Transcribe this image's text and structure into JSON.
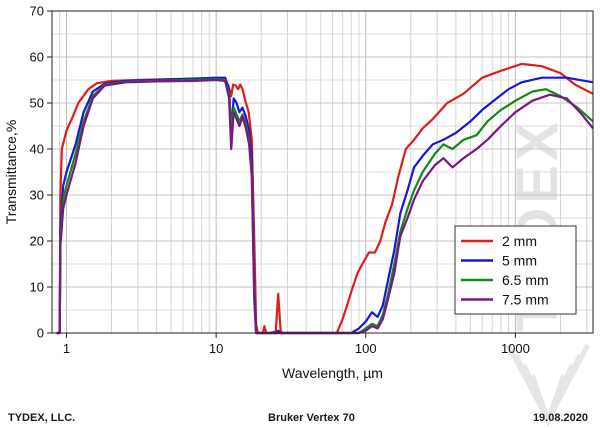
{
  "chart_data": {
    "type": "line",
    "xlabel": "Wavelength, µm",
    "ylabel": "Transmittance,%",
    "x_scale": "log",
    "xlim": [
      0.8,
      3300
    ],
    "ylim": [
      0,
      70
    ],
    "grid": true,
    "legend_position": "right",
    "x_ticks": [
      {
        "value": 1,
        "label": "1"
      },
      {
        "value": 10,
        "label": "10"
      },
      {
        "value": 100,
        "label": "100"
      },
      {
        "value": 1000,
        "label": "1000"
      }
    ],
    "y_ticks": [
      {
        "value": 0,
        "label": "0"
      },
      {
        "value": 10,
        "label": "10"
      },
      {
        "value": 20,
        "label": "20"
      },
      {
        "value": 30,
        "label": "30"
      },
      {
        "value": 40,
        "label": "40"
      },
      {
        "value": 50,
        "label": "50"
      },
      {
        "value": 60,
        "label": "60"
      },
      {
        "value": 70,
        "label": "70"
      }
    ],
    "watermark": "TYDEX",
    "series": [
      {
        "name": "2 mm",
        "color": "#e21b1b",
        "points": [
          [
            0.86,
            0
          ],
          [
            0.9,
            0
          ],
          [
            0.91,
            30
          ],
          [
            0.93,
            40
          ],
          [
            1.0,
            44
          ],
          [
            1.1,
            47
          ],
          [
            1.2,
            50
          ],
          [
            1.4,
            53
          ],
          [
            1.6,
            54.3
          ],
          [
            2,
            54.8
          ],
          [
            3,
            55
          ],
          [
            5,
            55.2
          ],
          [
            8,
            55.3
          ],
          [
            11,
            55.3
          ],
          [
            12,
            54
          ],
          [
            12.6,
            51.5
          ],
          [
            13,
            54
          ],
          [
            13.5,
            53.8
          ],
          [
            14,
            53
          ],
          [
            14.5,
            54
          ],
          [
            15,
            53
          ],
          [
            15.8,
            50
          ],
          [
            16.5,
            48
          ],
          [
            17.3,
            42
          ],
          [
            18,
            20
          ],
          [
            18.5,
            2
          ],
          [
            19,
            0
          ],
          [
            20.5,
            0
          ],
          [
            21,
            1.5
          ],
          [
            21.6,
            0
          ],
          [
            23,
            0
          ],
          [
            25,
            0.3
          ],
          [
            26,
            8.5
          ],
          [
            27,
            0.3
          ],
          [
            28,
            0
          ],
          [
            60,
            0
          ],
          [
            64,
            0
          ],
          [
            70,
            3
          ],
          [
            75,
            6
          ],
          [
            80,
            9
          ],
          [
            88,
            13
          ],
          [
            95,
            15
          ],
          [
            105,
            17.5
          ],
          [
            115,
            17.5
          ],
          [
            125,
            20
          ],
          [
            135,
            24
          ],
          [
            150,
            28
          ],
          [
            165,
            34
          ],
          [
            185,
            40
          ],
          [
            210,
            42
          ],
          [
            240,
            44.5
          ],
          [
            280,
            46.5
          ],
          [
            350,
            50
          ],
          [
            450,
            52
          ],
          [
            600,
            55.5
          ],
          [
            800,
            57
          ],
          [
            1100,
            58.5
          ],
          [
            1500,
            58
          ],
          [
            2000,
            56.5
          ],
          [
            2500,
            54
          ],
          [
            3300,
            52
          ]
        ]
      },
      {
        "name": "5 mm",
        "color": "#1717d8",
        "points": [
          [
            0.86,
            0
          ],
          [
            0.9,
            0
          ],
          [
            0.91,
            22
          ],
          [
            0.95,
            32
          ],
          [
            1.0,
            35
          ],
          [
            1.15,
            41
          ],
          [
            1.3,
            48
          ],
          [
            1.5,
            52.5
          ],
          [
            1.8,
            54.2
          ],
          [
            2.5,
            54.8
          ],
          [
            4,
            55
          ],
          [
            7,
            55.3
          ],
          [
            10,
            55.5
          ],
          [
            11.5,
            55.5
          ],
          [
            12.2,
            53
          ],
          [
            12.6,
            44
          ],
          [
            13.1,
            51
          ],
          [
            13.7,
            50
          ],
          [
            14.3,
            48
          ],
          [
            15,
            49
          ],
          [
            15.8,
            47
          ],
          [
            16.6,
            44
          ],
          [
            17.3,
            38
          ],
          [
            18,
            10
          ],
          [
            18.5,
            0
          ],
          [
            20,
            0
          ],
          [
            25,
            0
          ],
          [
            26,
            0.5
          ],
          [
            27,
            0
          ],
          [
            80,
            0
          ],
          [
            90,
            1
          ],
          [
            100,
            2.5
          ],
          [
            110,
            4.5
          ],
          [
            120,
            3.5
          ],
          [
            130,
            6
          ],
          [
            140,
            11
          ],
          [
            155,
            18
          ],
          [
            170,
            26
          ],
          [
            190,
            31
          ],
          [
            210,
            36
          ],
          [
            240,
            38.5
          ],
          [
            280,
            41
          ],
          [
            330,
            42
          ],
          [
            400,
            43.5
          ],
          [
            500,
            46
          ],
          [
            600,
            48.5
          ],
          [
            750,
            51
          ],
          [
            900,
            53
          ],
          [
            1100,
            54.5
          ],
          [
            1500,
            55.5
          ],
          [
            2200,
            55.5
          ],
          [
            3300,
            54.5
          ]
        ]
      },
      {
        "name": "6.5 mm",
        "color": "#138a13",
        "points": [
          [
            0.86,
            0
          ],
          [
            0.9,
            0
          ],
          [
            0.91,
            20
          ],
          [
            0.95,
            29
          ],
          [
            1.0,
            32
          ],
          [
            1.15,
            39
          ],
          [
            1.3,
            46
          ],
          [
            1.5,
            51.5
          ],
          [
            1.8,
            54
          ],
          [
            2.5,
            54.6
          ],
          [
            4,
            54.8
          ],
          [
            7,
            55
          ],
          [
            10,
            55.2
          ],
          [
            11.5,
            55
          ],
          [
            12.2,
            52
          ],
          [
            12.6,
            45
          ],
          [
            13.1,
            49
          ],
          [
            13.7,
            47.5
          ],
          [
            14.3,
            46
          ],
          [
            15,
            47.5
          ],
          [
            15.8,
            45.5
          ],
          [
            16.6,
            42
          ],
          [
            17.3,
            35
          ],
          [
            18,
            8
          ],
          [
            18.5,
            0
          ],
          [
            20,
            0
          ],
          [
            90,
            0
          ],
          [
            100,
            1
          ],
          [
            110,
            2
          ],
          [
            120,
            1.5
          ],
          [
            130,
            4
          ],
          [
            140,
            8
          ],
          [
            155,
            15
          ],
          [
            170,
            22
          ],
          [
            190,
            27
          ],
          [
            210,
            31
          ],
          [
            240,
            35
          ],
          [
            290,
            39
          ],
          [
            330,
            41
          ],
          [
            380,
            40
          ],
          [
            450,
            42
          ],
          [
            550,
            43
          ],
          [
            650,
            46
          ],
          [
            800,
            48.5
          ],
          [
            1000,
            50.5
          ],
          [
            1300,
            52.5
          ],
          [
            1600,
            53
          ],
          [
            2000,
            51.5
          ],
          [
            2600,
            49
          ],
          [
            3300,
            46
          ]
        ]
      },
      {
        "name": "7.5 mm",
        "color": "#7a1686",
        "points": [
          [
            0.86,
            0
          ],
          [
            0.9,
            0
          ],
          [
            0.91,
            19
          ],
          [
            0.95,
            27
          ],
          [
            1.0,
            30
          ],
          [
            1.15,
            37
          ],
          [
            1.3,
            45
          ],
          [
            1.5,
            51
          ],
          [
            1.8,
            53.8
          ],
          [
            2.5,
            54.5
          ],
          [
            4,
            54.7
          ],
          [
            7,
            54.8
          ],
          [
            10,
            55
          ],
          [
            11.5,
            54.8
          ],
          [
            12.2,
            51
          ],
          [
            12.6,
            40
          ],
          [
            13.1,
            48
          ],
          [
            13.7,
            46.5
          ],
          [
            14.3,
            45
          ],
          [
            15,
            47
          ],
          [
            15.8,
            44.5
          ],
          [
            16.6,
            41
          ],
          [
            17.3,
            34
          ],
          [
            18,
            7
          ],
          [
            18.5,
            0
          ],
          [
            20,
            0
          ],
          [
            90,
            0
          ],
          [
            100,
            0.5
          ],
          [
            110,
            1.5
          ],
          [
            120,
            1
          ],
          [
            130,
            3
          ],
          [
            140,
            7
          ],
          [
            155,
            13
          ],
          [
            170,
            21
          ],
          [
            190,
            25
          ],
          [
            210,
            29
          ],
          [
            240,
            33
          ],
          [
            290,
            36.5
          ],
          [
            330,
            38
          ],
          [
            380,
            36
          ],
          [
            450,
            38
          ],
          [
            550,
            40
          ],
          [
            650,
            42
          ],
          [
            800,
            45
          ],
          [
            1000,
            48
          ],
          [
            1300,
            50.5
          ],
          [
            1700,
            51.8
          ],
          [
            2200,
            51
          ],
          [
            2700,
            48
          ],
          [
            3300,
            44.5
          ]
        ]
      }
    ]
  },
  "footer": {
    "left": "TYDEX, LLC.",
    "center": "Bruker Vertex 70",
    "right": "19.08.2020"
  }
}
